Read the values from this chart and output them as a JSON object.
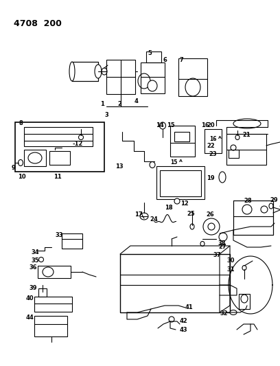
{
  "title": "4708  200",
  "bg_color": "#ffffff",
  "line_color": "#000000",
  "text_color": "#000000",
  "fig_width": 4.08,
  "fig_height": 5.33,
  "dpi": 100
}
